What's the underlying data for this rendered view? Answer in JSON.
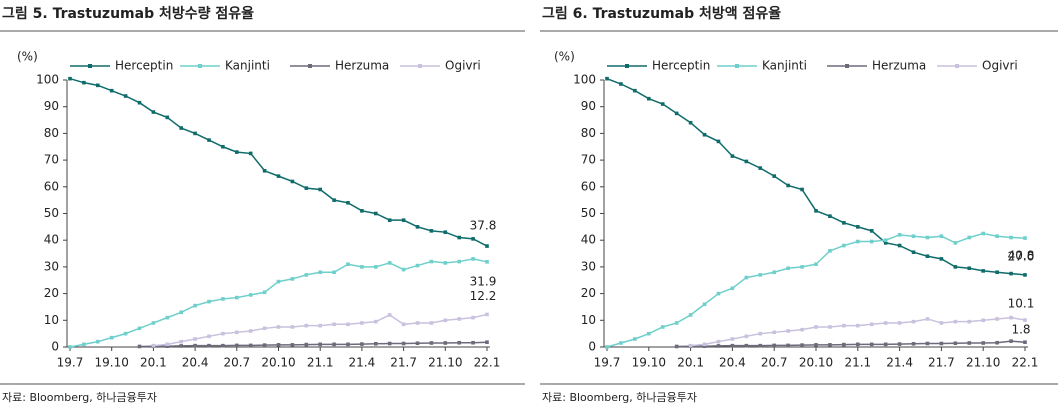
{
  "chart_data": [
    {
      "type": "line",
      "title": "그림 5. Trastuzumab 처방수량 점유율",
      "y_label": "(%)",
      "source": "자료: Bloomberg, 하나금융투자",
      "categories": [
        "19.7",
        null,
        null,
        "19.10",
        null,
        null,
        "20.1",
        null,
        null,
        "20.4",
        null,
        null,
        "20.7",
        null,
        null,
        "20.10",
        null,
        null,
        "21.1",
        null,
        null,
        "21.4",
        null,
        null,
        "21.7",
        null,
        null,
        "21.10",
        null,
        null,
        "22.1"
      ],
      "ylim": [
        0,
        100
      ],
      "yticks": [
        0,
        10,
        20,
        30,
        40,
        50,
        60,
        70,
        80,
        90,
        100
      ],
      "legend": "top",
      "series": [
        {
          "name": "Herceptin",
          "color": "#106b6b",
          "values": [
            100.5,
            99,
            98,
            96,
            94,
            91.5,
            88,
            86,
            82,
            80,
            77.5,
            75,
            73,
            72.5,
            66,
            64,
            62,
            59.5,
            59,
            55,
            54,
            51,
            50,
            47.5,
            47.5,
            45,
            43.5,
            43,
            41,
            40.5,
            37.8
          ],
          "value_labels": [
            null,
            null,
            null,
            null,
            null,
            null,
            null,
            null,
            null,
            null,
            null,
            null,
            null,
            null,
            null,
            null,
            null,
            null,
            null,
            null,
            null,
            null,
            null,
            null,
            null,
            null,
            null,
            null,
            null,
            null,
            "37.8"
          ]
        },
        {
          "name": "Kanjinti",
          "color": "#6fcfcb",
          "values": [
            0,
            1,
            2,
            3.5,
            5,
            7,
            9,
            11,
            13,
            15.5,
            17,
            18,
            18.5,
            19.5,
            20.5,
            24.5,
            25.5,
            27,
            28,
            28,
            31,
            30,
            30,
            31.5,
            29,
            30.5,
            32,
            31.5,
            32,
            33,
            31.9
          ],
          "value_labels": [
            null,
            null,
            null,
            null,
            null,
            null,
            null,
            null,
            null,
            null,
            null,
            null,
            null,
            null,
            null,
            null,
            null,
            null,
            null,
            null,
            null,
            null,
            null,
            null,
            null,
            null,
            null,
            null,
            null,
            null,
            "31.9"
          ]
        },
        {
          "name": "Herzuma",
          "color": "#6b6b7b",
          "values": [
            null,
            null,
            null,
            null,
            null,
            0.2,
            0.3,
            0.3,
            0.4,
            0.5,
            0.5,
            0.5,
            0.6,
            0.6,
            0.7,
            0.8,
            0.8,
            0.9,
            1,
            1,
            1,
            1.1,
            1.2,
            1.3,
            1.3,
            1.4,
            1.5,
            1.5,
            1.6,
            1.6,
            1.8
          ]
        },
        {
          "name": "Ogivri",
          "color": "#c9c1dd",
          "values": [
            null,
            null,
            null,
            null,
            null,
            null,
            0.5,
            1,
            2,
            3,
            4,
            5,
            5.5,
            6,
            7,
            7.5,
            7.5,
            8,
            8,
            8.5,
            8.5,
            9,
            9.5,
            12,
            8.5,
            9,
            9,
            10,
            10.5,
            11,
            12.2
          ],
          "value_labels": [
            null,
            null,
            null,
            null,
            null,
            null,
            null,
            null,
            null,
            null,
            null,
            null,
            null,
            null,
            null,
            null,
            null,
            null,
            null,
            null,
            null,
            null,
            null,
            null,
            null,
            null,
            null,
            null,
            null,
            null,
            "12.2"
          ]
        }
      ]
    },
    {
      "type": "line",
      "title": "그림 6. Trastuzumab 처방액 점유율",
      "y_label": "(%)",
      "source": "자료: Bloomberg, 하나금융투자",
      "categories": [
        "19.7",
        null,
        null,
        "19.10",
        null,
        null,
        "20.1",
        null,
        null,
        "20.4",
        null,
        null,
        "20.7",
        null,
        null,
        "20.10",
        null,
        null,
        "21.1",
        null,
        null,
        "21.4",
        null,
        null,
        "21.7",
        null,
        null,
        "21.10",
        null,
        null,
        "22.1"
      ],
      "ylim": [
        0,
        100
      ],
      "yticks": [
        0,
        10,
        20,
        30,
        40,
        50,
        60,
        70,
        80,
        90,
        100
      ],
      "legend": "top",
      "series": [
        {
          "name": "Herceptin",
          "color": "#106b6b",
          "values": [
            100.5,
            98.5,
            96,
            93,
            91,
            87.5,
            84,
            79.5,
            77,
            71.5,
            69.5,
            67,
            64,
            60.5,
            59,
            51,
            49,
            46.5,
            45,
            43.5,
            39,
            38,
            35.5,
            34,
            33,
            30,
            29.5,
            28.5,
            28,
            27.5,
            27.0
          ],
          "value_labels": [
            null,
            null,
            null,
            null,
            null,
            null,
            null,
            null,
            null,
            null,
            null,
            null,
            null,
            null,
            null,
            null,
            null,
            null,
            null,
            null,
            null,
            null,
            null,
            null,
            null,
            null,
            null,
            null,
            null,
            null,
            "27.0"
          ]
        },
        {
          "name": "Kanjinti",
          "color": "#6fcfcb",
          "values": [
            0,
            1.5,
            3,
            5,
            7.5,
            9,
            12,
            16,
            20,
            22,
            26,
            27,
            28,
            29.5,
            30,
            31,
            36,
            38,
            39.5,
            39.5,
            40,
            42,
            41.5,
            41,
            41.5,
            39,
            41,
            42.5,
            41.5,
            41,
            40.8
          ],
          "value_labels": [
            null,
            null,
            null,
            null,
            null,
            null,
            null,
            null,
            null,
            null,
            null,
            null,
            null,
            null,
            null,
            null,
            null,
            null,
            null,
            null,
            null,
            null,
            null,
            null,
            null,
            null,
            null,
            null,
            null,
            null,
            "40.8"
          ]
        },
        {
          "name": "Herzuma",
          "color": "#6b6b7b",
          "values": [
            null,
            null,
            null,
            null,
            null,
            0.2,
            0.3,
            0.3,
            0.4,
            0.5,
            0.5,
            0.5,
            0.6,
            0.6,
            0.7,
            0.8,
            0.8,
            0.9,
            1,
            1,
            1,
            1.1,
            1.2,
            1.3,
            1.3,
            1.4,
            1.5,
            1.5,
            1.6,
            2.2,
            1.8
          ],
          "value_labels": [
            null,
            null,
            null,
            null,
            null,
            null,
            null,
            null,
            null,
            null,
            null,
            null,
            null,
            null,
            null,
            null,
            null,
            null,
            null,
            null,
            null,
            null,
            null,
            null,
            null,
            null,
            null,
            null,
            null,
            null,
            "1.8"
          ]
        },
        {
          "name": "Ogivri",
          "color": "#c9c1dd",
          "values": [
            null,
            null,
            null,
            null,
            null,
            null,
            0.5,
            1,
            2,
            3,
            4,
            5,
            5.5,
            6,
            6.5,
            7.5,
            7.5,
            8,
            8,
            8.5,
            9,
            9,
            9.5,
            10.5,
            9,
            9.5,
            9.5,
            10,
            10.5,
            11,
            10.1
          ],
          "value_labels": [
            null,
            null,
            null,
            null,
            null,
            null,
            null,
            null,
            null,
            null,
            null,
            null,
            null,
            null,
            null,
            null,
            null,
            null,
            null,
            null,
            null,
            null,
            null,
            null,
            null,
            null,
            null,
            null,
            null,
            null,
            "10.1"
          ]
        }
      ]
    }
  ]
}
